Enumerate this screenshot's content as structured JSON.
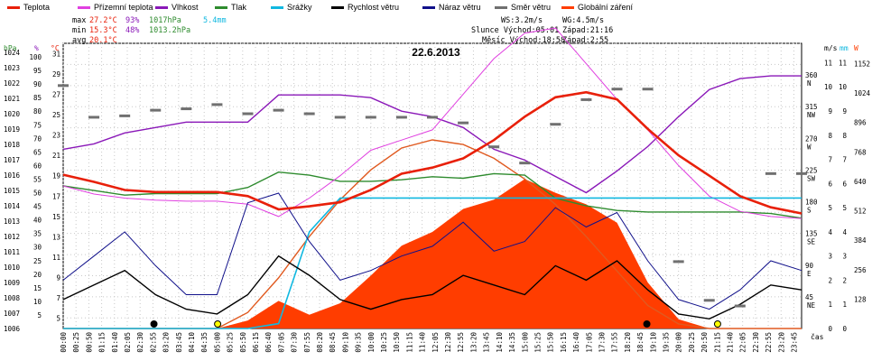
{
  "chart_data": {
    "type": "line",
    "title": "22.6.2013",
    "xlabel": "čas",
    "legend": [
      {
        "name": "Teplota",
        "color": "#e8200a"
      },
      {
        "name": "Přízemní teplota",
        "color": "#e040e0"
      },
      {
        "name": "Vlhkost",
        "color": "#8a18b8"
      },
      {
        "name": "Tlak",
        "color": "#2e8b2e"
      },
      {
        "name": "Srážky",
        "color": "#10b8e0"
      },
      {
        "name": "Rychlost větru",
        "color": "#000000"
      },
      {
        "name": "Náraz větru",
        "color": "#10108a"
      },
      {
        "name": "Směr větru",
        "color": "#707070"
      },
      {
        "name": "Globální záření",
        "color": "#ff3d00"
      }
    ],
    "stats": {
      "max_label": "max",
      "max_temp": "27.2°C",
      "max_hum": "93%",
      "max_press": "1017hPa",
      "max_rain": "5.4mm",
      "min_label": "min",
      "min_temp": "15.3°C",
      "min_hum": "48%",
      "min_press": "1013.2hPa",
      "avg_label": "avg",
      "avg_temp": "20.1°C",
      "ws": "WS:3.2m/s",
      "wg": "WG:4.5m/s",
      "sun": "Slunce Východ:05:01",
      "sun_set": "Západ:21:16",
      "moon": "Měsíc Východ:18:58",
      "moon_set": "Západ:2:55"
    },
    "axes_left": {
      "hpa": {
        "label": "hPa",
        "ticks": [
          "1024",
          "1023",
          "1022",
          "1021",
          "1020",
          "1019",
          "1018",
          "1017",
          "1016",
          "1015",
          "1014",
          "1013",
          "1012",
          "1011",
          "1010",
          "1009",
          "1008",
          "1007",
          "1006"
        ]
      },
      "pct": {
        "label": "%",
        "ticks": [
          "100",
          "95",
          "90",
          "85",
          "80",
          "75",
          "70",
          "65",
          "60",
          "55",
          "50",
          "45",
          "40",
          "35",
          "30",
          "25",
          "20",
          "15",
          "10",
          "5"
        ]
      },
      "degc": {
        "label": "°C",
        "ticks": [
          "31",
          "29",
          "27",
          "25",
          "23",
          "21",
          "19",
          "17",
          "15",
          "13",
          "11",
          "9",
          "7",
          "5"
        ]
      }
    },
    "axes_right": {
      "deg": {
        "label": "",
        "ticks": [
          "360",
          "315",
          "270",
          "225",
          "180",
          "135",
          "90",
          "45",
          ""
        ],
        "dirs": [
          "N",
          "NW",
          "W",
          "SW",
          "S",
          "SE",
          "E",
          "NE",
          ""
        ]
      },
      "ms": {
        "label": "m/s",
        "ticks": [
          "11",
          "10",
          "9",
          "8",
          "7",
          "6",
          "5",
          "4",
          "3",
          "2",
          "1",
          "0"
        ]
      },
      "mm": {
        "label": "mm",
        "ticks": [
          "11",
          "10",
          "9",
          "8",
          "7",
          "6",
          "5",
          "4",
          "3",
          "2",
          "1",
          "0"
        ]
      },
      "w": {
        "label": "W",
        "ticks": [
          "1152",
          "1024",
          "896",
          "768",
          "640",
          "512",
          "384",
          "256",
          "128"
        ]
      }
    },
    "x_ticks": [
      "00:00",
      "00:25",
      "00:50",
      "01:15",
      "01:40",
      "02:05",
      "02:30",
      "02:55",
      "03:20",
      "03:45",
      "04:10",
      "04:35",
      "05:00",
      "05:25",
      "05:50",
      "06:15",
      "06:40",
      "07:05",
      "07:30",
      "07:55",
      "08:20",
      "08:45",
      "09:10",
      "09:35",
      "10:00",
      "10:25",
      "10:50",
      "11:15",
      "11:40",
      "12:05",
      "12:30",
      "12:55",
      "13:20",
      "13:45",
      "14:10",
      "14:35",
      "15:00",
      "15:25",
      "15:50",
      "16:15",
      "16:40",
      "17:05",
      "17:30",
      "17:55",
      "18:20",
      "18:45",
      "19:10",
      "19:35",
      "20:00",
      "20:25",
      "20:50",
      "21:15",
      "21:40",
      "22:05",
      "22:30",
      "22:55",
      "23:20",
      "23:45"
    ],
    "hours": [
      0,
      1,
      2,
      3,
      4,
      5,
      6,
      7,
      8,
      9,
      10,
      11,
      12,
      13,
      14,
      15,
      16,
      17,
      18,
      19,
      20,
      21,
      22,
      23,
      24
    ],
    "temperature_c": [
      19.1,
      18.4,
      17.6,
      17.4,
      17.4,
      17.4,
      17.0,
      15.7,
      16.0,
      16.4,
      17.6,
      19.2,
      19.8,
      20.7,
      22.5,
      24.8,
      26.7,
      27.2,
      26.5,
      23.6,
      21.0,
      19.0,
      17.0,
      15.9,
      15.3
    ],
    "ground_temp_c": [
      18.0,
      17.2,
      16.8,
      16.6,
      16.5,
      16.5,
      16.2,
      15.0,
      16.8,
      19.0,
      21.5,
      22.5,
      23.5,
      27.0,
      30.5,
      33.0,
      33.5,
      30.0,
      26.5,
      23.5,
      20.0,
      17.0,
      15.5,
      15.0,
      14.8
    ],
    "humidity_pct": [
      66,
      68,
      72,
      74,
      76,
      76,
      76,
      86,
      86,
      86,
      85,
      80,
      78,
      74,
      66,
      62,
      56,
      50,
      58,
      67,
      78,
      88,
      92,
      93,
      93
    ],
    "pressure_hpa": [
      1015.3,
      1015.0,
      1014.7,
      1014.8,
      1014.8,
      1014.8,
      1015.2,
      1016.2,
      1016.0,
      1015.6,
      1015.6,
      1015.7,
      1015.9,
      1015.8,
      1016.1,
      1016.0,
      1014.5,
      1014.0,
      1013.7,
      1013.6,
      1013.6,
      1013.6,
      1013.6,
      1013.5,
      1013.2
    ],
    "rain_mm_cumulative": [
      0,
      0,
      0,
      0,
      0,
      0,
      0,
      0.2,
      4.0,
      5.4,
      5.4,
      5.4,
      5.4,
      5.4,
      5.4,
      5.4,
      5.4,
      5.4,
      5.4,
      5.4,
      5.4,
      5.4,
      5.4,
      5.4,
      5.4
    ],
    "wind_speed_ms": [
      1.2,
      1.8,
      2.4,
      1.4,
      0.8,
      0.6,
      1.4,
      3.0,
      2.2,
      1.2,
      0.8,
      1.2,
      1.4,
      2.2,
      1.8,
      1.4,
      2.6,
      2.0,
      2.8,
      1.6,
      0.6,
      0.4,
      1.0,
      1.8,
      1.6
    ],
    "wind_gust_ms": [
      2.0,
      3.0,
      4.0,
      2.6,
      1.4,
      1.4,
      5.2,
      5.6,
      3.6,
      2.0,
      2.4,
      3.0,
      3.4,
      4.4,
      3.2,
      3.6,
      5.0,
      4.2,
      4.8,
      2.8,
      1.2,
      0.8,
      1.6,
      2.8,
      2.4
    ],
    "wind_dir_deg": [
      345,
      300,
      302,
      310,
      312,
      318,
      305,
      310,
      305,
      300,
      300,
      300,
      300,
      292,
      258,
      235,
      290,
      325,
      340,
      340,
      95,
      40,
      32,
      220,
      220
    ],
    "solar_w_m2": [
      0,
      0,
      0,
      0,
      0,
      0,
      35,
      120,
      60,
      110,
      230,
      360,
      420,
      520,
      560,
      650,
      590,
      540,
      460,
      200,
      40,
      0,
      0,
      0,
      0
    ],
    "solar_clear_sky_w_m2": [
      0,
      0,
      0,
      0,
      0,
      0,
      70,
      220,
      400,
      560,
      690,
      785,
      820,
      800,
      740,
      650,
      540,
      400,
      250,
      100,
      20,
      0,
      0,
      0,
      0
    ],
    "markers": [
      {
        "hour": 2.95,
        "label": "moonset"
      },
      {
        "hour": 5.02,
        "label": "sunrise"
      },
      {
        "hour": 18.97,
        "label": "moonrise"
      },
      {
        "hour": 21.27,
        "label": "sunset"
      }
    ]
  }
}
